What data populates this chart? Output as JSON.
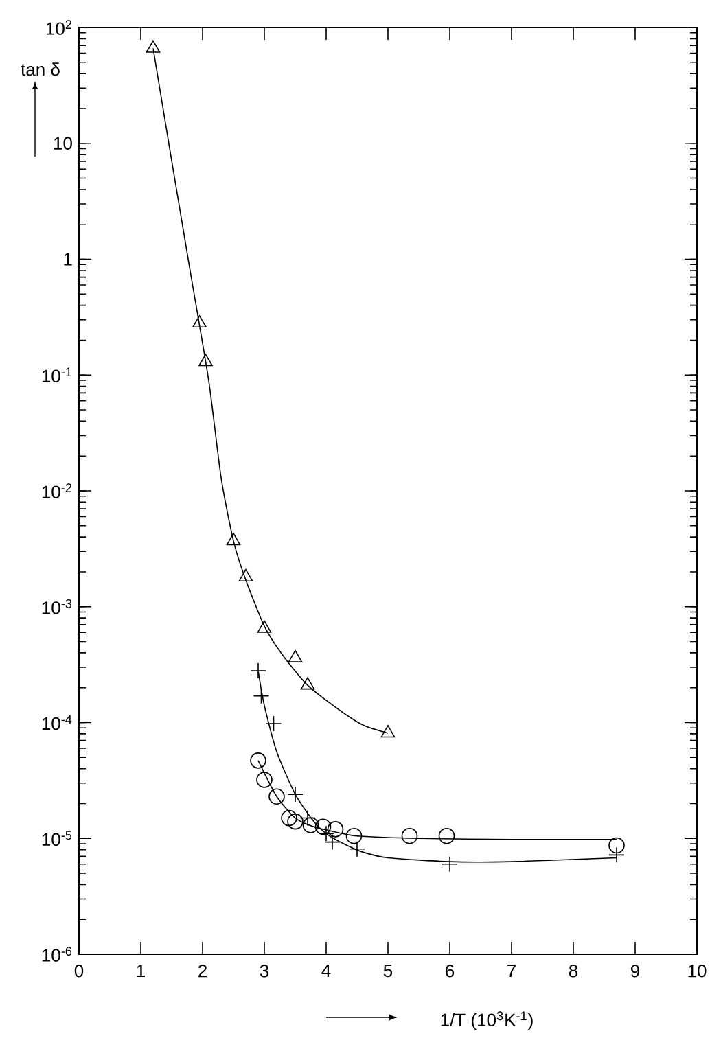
{
  "chart_data": {
    "type": "scatter",
    "xlabel": "1/T  (10$^{3}$K$^{-1}$)",
    "ylabel": "tan δ",
    "log": "y",
    "xlim": [
      0,
      10
    ],
    "ylim": [
      1e-06,
      100
    ],
    "xticks": [
      0,
      1,
      2,
      3,
      4,
      5,
      6,
      7,
      8,
      9,
      10
    ],
    "yticks": [
      {
        "value": 1e-06,
        "label": "10$^{-6}$"
      },
      {
        "value": 1e-05,
        "label": "10$^{-5}$"
      },
      {
        "value": 0.0001,
        "label": "10$^{-4}$"
      },
      {
        "value": 0.001,
        "label": "10$^{-3}$"
      },
      {
        "value": 0.01,
        "label": "10$^{-2}$"
      },
      {
        "value": 0.1,
        "label": "10$^{-1}$"
      },
      {
        "value": 1,
        "label": "1"
      },
      {
        "value": 10,
        "label": "10"
      },
      {
        "value": 100,
        "label": "10$^{2}$"
      }
    ],
    "grid": false,
    "series": [
      {
        "marker": "triangle",
        "color": "#000000",
        "x": [
          1.2,
          1.95,
          2.05,
          2.5,
          2.7,
          3.0,
          3.5,
          3.7,
          5.0
        ],
        "values": [
          66,
          0.28,
          0.13,
          0.0037,
          0.0018,
          0.00065,
          0.00036,
          0.00021,
          8.1e-05
        ]
      },
      {
        "marker": "cross",
        "color": "#000000",
        "x": [
          2.9,
          2.95,
          3.15,
          3.5,
          3.7,
          4.0,
          4.1,
          4.5,
          6.0,
          8.7
        ],
        "values": [
          0.00028,
          0.00017,
          9.8e-05,
          2.4e-05,
          1.5e-05,
          1.1e-05,
          9.3e-06,
          8.1e-06,
          6e-06,
          7.2e-06
        ]
      },
      {
        "marker": "circle",
        "color": "#000000",
        "x": [
          2.9,
          3.0,
          3.2,
          3.4,
          3.5,
          3.75,
          3.95,
          4.15,
          4.45,
          5.35,
          5.95,
          8.7
        ],
        "values": [
          4.7e-05,
          3.2e-05,
          2.3e-05,
          1.5e-05,
          1.4e-05,
          1.3e-05,
          1.26e-05,
          1.2e-05,
          1.05e-05,
          1.05e-05,
          1.05e-05,
          8.7e-06
        ]
      },
      {
        "type": "line",
        "marker": "none",
        "line_style": "solid",
        "color": "#000000",
        "x": [
          1.2,
          1.5,
          1.8,
          2.1,
          2.3,
          2.5,
          2.7,
          3.0,
          3.3,
          3.7,
          4.2,
          4.6,
          5.0
        ],
        "values": [
          66,
          7.1,
          0.79,
          0.089,
          0.013,
          0.0037,
          0.0017,
          0.00068,
          0.00038,
          0.00021,
          0.00013,
          9.5e-05,
          8.1e-05
        ]
      },
      {
        "type": "line",
        "marker": "none",
        "line_style": "solid",
        "color": "#000000",
        "x": [
          2.9,
          3.0,
          3.2,
          3.5,
          3.8,
          4.0,
          4.3,
          4.6,
          5.0,
          6.0,
          7.0,
          8.7
        ],
        "values": [
          0.00028,
          0.00014,
          5.6e-05,
          2.4e-05,
          1.4e-05,
          1.1e-05,
          8.9e-06,
          7.6e-06,
          6.8e-06,
          6.3e-06,
          6.3e-06,
          6.8e-06
        ]
      },
      {
        "type": "line",
        "marker": "none",
        "line_style": "solid",
        "color": "#000000",
        "x": [
          2.9,
          3.2,
          3.5,
          3.8,
          4.2,
          4.5,
          5.5,
          7.0,
          8.7
        ],
        "values": [
          4.7e-05,
          2.3e-05,
          1.5e-05,
          1.26e-05,
          1.12e-05,
          1.05e-05,
          1e-05,
          9.8e-06,
          9.8e-06
        ]
      }
    ]
  }
}
